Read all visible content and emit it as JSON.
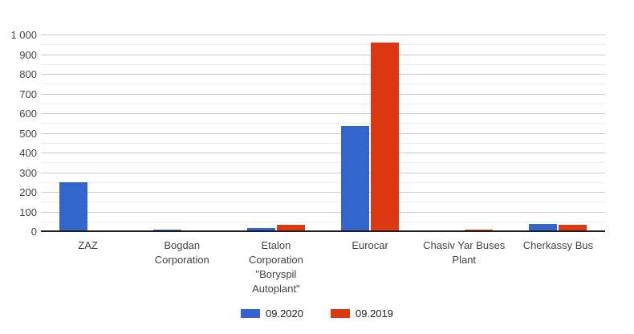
{
  "chart_data": {
    "type": "bar",
    "title": "",
    "xlabel": "",
    "ylabel": "",
    "ylim": [
      0,
      1000
    ],
    "grid": true,
    "minor_grid_step": 50,
    "legend_position": "bottom",
    "y_ticks": [
      {
        "value": 1000,
        "label": "1 000"
      },
      {
        "value": 900,
        "label": "900"
      },
      {
        "value": 800,
        "label": "800"
      },
      {
        "value": 700,
        "label": "700"
      },
      {
        "value": 600,
        "label": "600"
      },
      {
        "value": 500,
        "label": "500"
      },
      {
        "value": 400,
        "label": "400"
      },
      {
        "value": 300,
        "label": "300"
      },
      {
        "value": 200,
        "label": "200"
      },
      {
        "value": 100,
        "label": "100"
      },
      {
        "value": 0,
        "label": "0"
      }
    ],
    "categories": [
      "ZAZ",
      "Bogdan Corporation",
      "Etalon Corporation \"Boryspil Autoplant\"",
      "Eurocar",
      "Chasiv Yar Buses Plant",
      "Cherkassy Bus"
    ],
    "category_label_lines": [
      [
        "ZAZ"
      ],
      [
        "Bogdan",
        "Corporation"
      ],
      [
        "Etalon",
        "Corporation",
        "\"Boryspil",
        "Autoplant\""
      ],
      [
        "Eurocar"
      ],
      [
        "Chasiv Yar Buses",
        "Plant"
      ],
      [
        "Cherkassy Bus"
      ]
    ],
    "series": [
      {
        "name": "09.2020",
        "color": "#3366CC",
        "values": [
          250,
          10,
          17,
          535,
          2,
          36
        ]
      },
      {
        "name": "09.2019",
        "color": "#DC3912",
        "values": [
          6,
          3,
          33,
          960,
          8,
          33
        ]
      }
    ]
  },
  "colors": {
    "series_2020": "#3366CC",
    "series_2019": "#DC3912",
    "major_grid": "#cccccc",
    "minor_grid": "#ebebeb",
    "axis_text": "#444444",
    "legend_text": "#222222",
    "baseline": "#1a1a1a",
    "background": "#ffffff"
  }
}
